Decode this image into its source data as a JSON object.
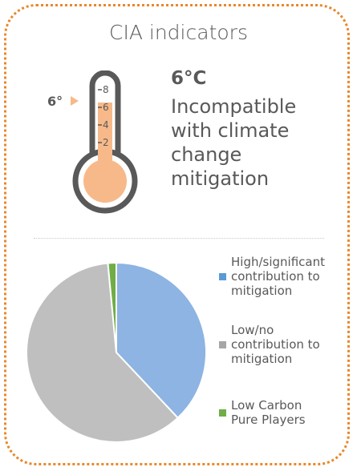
{
  "title": "CIA indicators",
  "thermometer": {
    "pointer_label": "6°",
    "scale_labels": [
      "8",
      "6",
      "4",
      "2"
    ],
    "level_celsius": 6,
    "colors": {
      "outline": "#595959",
      "fill": "#f7b98a",
      "pointer": "#f7b98a"
    }
  },
  "temperature": {
    "value": "6°C",
    "description": "Incompatible with climate change mitigation"
  },
  "chart_data": {
    "type": "pie",
    "slices": [
      {
        "label": "High/significant contribution to mitigation",
        "value": 38,
        "color": "#8db4e2"
      },
      {
        "label": "Low/no contribution to mitigation",
        "value": 60.5,
        "color": "#bfbfbf"
      },
      {
        "label": "Low Carbon Pure Players",
        "value": 1.5,
        "color": "#70ad47"
      }
    ],
    "legend_position": "right"
  },
  "legend": {
    "items": [
      {
        "label": "High/significant\ncontribution to\nmitigation",
        "color": "#5b9bd5"
      },
      {
        "label": "Low/no\ncontribution to\nmitigation",
        "color": "#a6a6a6"
      },
      {
        "label": "Low Carbon\nPure Players",
        "color": "#70ad47"
      }
    ]
  },
  "colors": {
    "frame": "#e8882a",
    "text": "#595959"
  }
}
